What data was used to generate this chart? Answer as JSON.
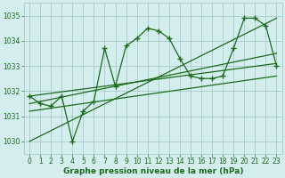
{
  "title": "Graphe pression niveau de la mer (hPa)",
  "background_color": "#d4eeed",
  "grid_color": "#a8cccc",
  "line_color": "#1a6b1a",
  "ylim": [
    1029.5,
    1035.5
  ],
  "xlim": [
    -0.5,
    23.5
  ],
  "yticks": [
    1030,
    1031,
    1032,
    1033,
    1034,
    1035
  ],
  "xticks": [
    0,
    1,
    2,
    3,
    4,
    5,
    6,
    7,
    8,
    9,
    10,
    11,
    12,
    13,
    14,
    15,
    16,
    17,
    18,
    19,
    20,
    21,
    22,
    23
  ],
  "values": [
    1031.8,
    1031.5,
    1031.4,
    1031.8,
    1030.0,
    1031.2,
    1031.6,
    1033.7,
    1032.2,
    1033.8,
    1034.1,
    1034.5,
    1034.4,
    1034.1,
    1033.3,
    1032.6,
    1032.5,
    1032.5,
    1032.6,
    1033.7,
    1034.9,
    1034.9,
    1034.6,
    1033.0
  ],
  "trend_lines": [
    [
      0,
      1031.8,
      23,
      1033.1
    ],
    [
      0,
      1031.5,
      23,
      1033.5
    ],
    [
      0,
      1030.0,
      23,
      1034.9
    ],
    [
      0,
      1031.2,
      23,
      1032.6
    ]
  ],
  "tick_fontsize": 5.5,
  "label_fontsize": 6.5
}
